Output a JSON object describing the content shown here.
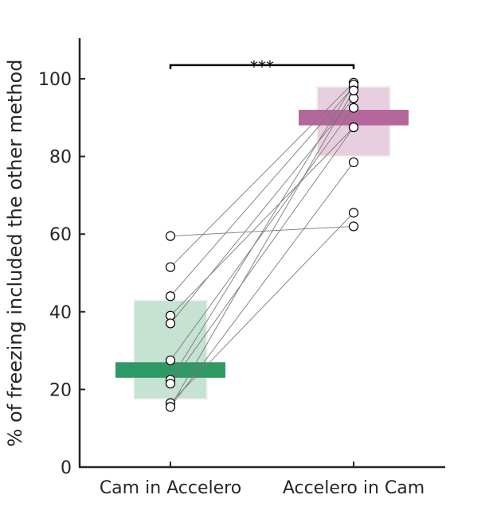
{
  "chart_data": {
    "type": "scatter",
    "title": "",
    "xlabel": "",
    "ylabel": "% of freezing included the other method",
    "ylim": [
      0,
      110
    ],
    "yticks": [
      0,
      20,
      40,
      60,
      80,
      100
    ],
    "categories": [
      "Cam in Accelero",
      "Accelero in Cam"
    ],
    "groups": [
      {
        "category": "Cam in Accelero",
        "color_light": "#c5e2d2",
        "color_dark": "#2e9964",
        "box_low": 17.5,
        "box_high": 43,
        "median_low": 23,
        "median_high": 27
      },
      {
        "category": "Accelero in Cam",
        "color_light": "#e8cfe0",
        "color_dark": "#b5679b",
        "box_low": 80,
        "box_high": 98,
        "median_low": 88,
        "median_high": 92
      }
    ],
    "pairs": [
      [
        59.5,
        62
      ],
      [
        51.5,
        99
      ],
      [
        44,
        98
      ],
      [
        39,
        87.5
      ],
      [
        37,
        95
      ],
      [
        27.5,
        92.5
      ],
      [
        22.5,
        98.5
      ],
      [
        21.5,
        87.5
      ],
      [
        16.5,
        65.5
      ],
      [
        15.5,
        78.5
      ],
      [
        15.5,
        97
      ]
    ],
    "significance": {
      "label": "***",
      "from": "Cam in Accelero",
      "to": "Accelero in Cam",
      "y": 103.5
    },
    "grid": false
  }
}
